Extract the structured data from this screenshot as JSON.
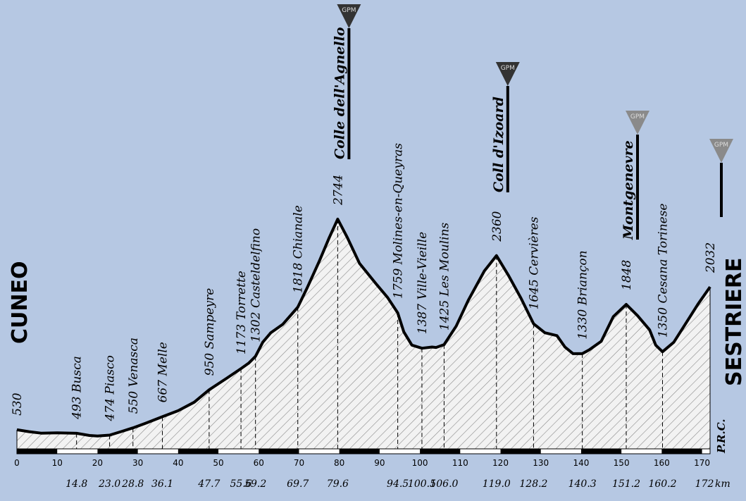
{
  "start_label": "CUNEO",
  "finish_label": "SESTRIERE",
  "credit": "P.R.C.",
  "gpm_label": "GPM",
  "km_unit": "km",
  "chart_data": {
    "type": "area",
    "xlim": [
      0,
      172
    ],
    "ylim": [
      300,
      2744
    ],
    "x_ticks": [
      "0",
      "10",
      "20",
      "30",
      "40",
      "50",
      "60",
      "70",
      "80",
      "90",
      "100",
      "110",
      "120",
      "130",
      "140",
      "150",
      "160",
      "170"
    ],
    "profile": [
      [
        0,
        530
      ],
      [
        3,
        510
      ],
      [
        6,
        495
      ],
      [
        10,
        498
      ],
      [
        14.8,
        493
      ],
      [
        18,
        470
      ],
      [
        20,
        465
      ],
      [
        23,
        474
      ],
      [
        25.8,
        510
      ],
      [
        28.8,
        550
      ],
      [
        32,
        600
      ],
      [
        36.1,
        667
      ],
      [
        40,
        730
      ],
      [
        44,
        820
      ],
      [
        47.7,
        950
      ],
      [
        52,
        1070
      ],
      [
        55.6,
        1173
      ],
      [
        57.5,
        1230
      ],
      [
        59.2,
        1302
      ],
      [
        61,
        1450
      ],
      [
        63,
        1550
      ],
      [
        66,
        1640
      ],
      [
        69.7,
        1818
      ],
      [
        72,
        2020
      ],
      [
        75,
        2300
      ],
      [
        77.5,
        2550
      ],
      [
        79.6,
        2744
      ],
      [
        82,
        2550
      ],
      [
        85,
        2280
      ],
      [
        89,
        2070
      ],
      [
        92,
        1920
      ],
      [
        94.5,
        1759
      ],
      [
        96,
        1560
      ],
      [
        98,
        1420
      ],
      [
        100.5,
        1387
      ],
      [
        103,
        1400
      ],
      [
        104,
        1395
      ],
      [
        106,
        1425
      ],
      [
        109,
        1620
      ],
      [
        112,
        1890
      ],
      [
        116,
        2200
      ],
      [
        119,
        2360
      ],
      [
        122,
        2150
      ],
      [
        125,
        1920
      ],
      [
        128.2,
        1645
      ],
      [
        131,
        1550
      ],
      [
        134,
        1520
      ],
      [
        136,
        1400
      ],
      [
        138,
        1330
      ],
      [
        140.3,
        1330
      ],
      [
        142,
        1370
      ],
      [
        145,
        1460
      ],
      [
        148,
        1720
      ],
      [
        151.2,
        1848
      ],
      [
        154,
        1730
      ],
      [
        157,
        1580
      ],
      [
        158.5,
        1420
      ],
      [
        160.2,
        1350
      ],
      [
        163,
        1450
      ],
      [
        166,
        1650
      ],
      [
        169,
        1850
      ],
      [
        172,
        2032
      ]
    ],
    "places": [
      {
        "km": 0,
        "alt": "530",
        "name": ""
      },
      {
        "km": 14.8,
        "alt": "493",
        "name": "Busca"
      },
      {
        "km": 23.0,
        "alt": "474",
        "name": "Piasco"
      },
      {
        "km": 28.8,
        "alt": "550",
        "name": "Venasca"
      },
      {
        "km": 36.1,
        "alt": "667",
        "name": "Melle"
      },
      {
        "km": 47.7,
        "alt": "950",
        "name": "Sampeyre"
      },
      {
        "km": 55.6,
        "alt": "1173",
        "name": "Torrette"
      },
      {
        "km": 59.2,
        "alt": "1302",
        "name": "Casteldelfino"
      },
      {
        "km": 69.7,
        "alt": "1818",
        "name": "Chianale"
      },
      {
        "km": 79.6,
        "alt": "2744",
        "name": ""
      },
      {
        "km": 94.5,
        "alt": "1759",
        "name": "Molines-en-Queyras"
      },
      {
        "km": 100.5,
        "alt": "1387",
        "name": "Ville-Vieille"
      },
      {
        "km": 106.0,
        "alt": "1425",
        "name": "Les Moulins"
      },
      {
        "km": 119.0,
        "alt": "2360",
        "name": ""
      },
      {
        "km": 128.2,
        "alt": "1645",
        "name": "Cervières"
      },
      {
        "km": 140.3,
        "alt": "1330",
        "name": "Briançon"
      },
      {
        "km": 151.2,
        "alt": "1848",
        "name": ""
      },
      {
        "km": 160.2,
        "alt": "1350",
        "name": "Cesana Torinese"
      },
      {
        "km": 172,
        "alt": "2032",
        "name": ""
      }
    ],
    "passes": [
      {
        "km": 79.6,
        "name": "Colle dell'Agnello",
        "category": "1"
      },
      {
        "km": 119.0,
        "name": "Coll d'Izoard",
        "category": "1"
      },
      {
        "km": 151.2,
        "name": "Montgenevre",
        "category": "2"
      },
      {
        "km": 172,
        "name": "",
        "category": "2"
      }
    ],
    "distances": [
      "14.8",
      "23.0",
      "28.8",
      "36.1",
      "47.7",
      "55.6",
      "59.2",
      "69.7",
      "79.6",
      "94.5",
      "100.5",
      "106.0",
      "119.0",
      "128.2",
      "140.3",
      "151.2",
      "160.2",
      "172"
    ],
    "colors": {
      "background": "#b6c8e3",
      "profile_fill": "#f2f2f2",
      "hatch": "#8a8a8a",
      "gpm_dark": "#333333",
      "gpm_light": "#8a8a8a"
    }
  }
}
